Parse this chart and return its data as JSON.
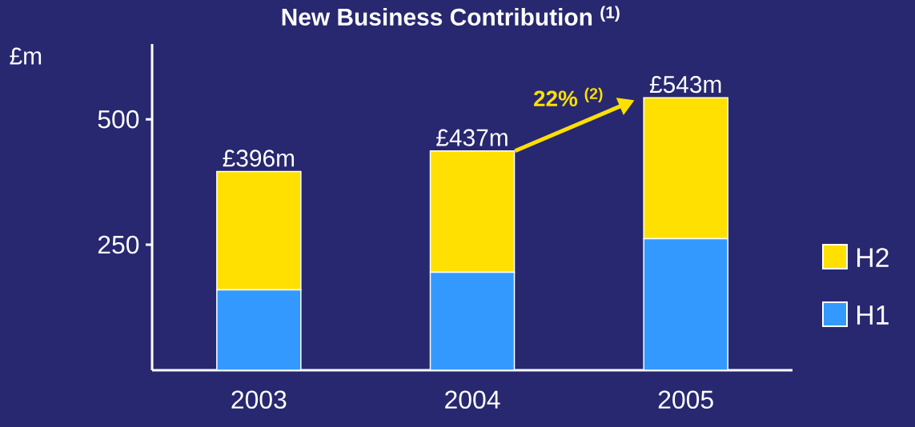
{
  "chart_data": {
    "type": "bar",
    "title": "New Business Contribution $^{(1)}$",
    "ylabel": "£m",
    "categories": [
      "2003",
      "2004",
      "2005"
    ],
    "stacked": true,
    "series": [
      {
        "name": "H1",
        "color": "#3399ff",
        "values": [
          160,
          195,
          262
        ]
      },
      {
        "name": "H2",
        "color": "#ffe000",
        "values": [
          236,
          242,
          281
        ]
      }
    ],
    "totals": [
      "£396m",
      "£437m",
      "£543m"
    ],
    "annotations": [
      "22% $^{(2)}$"
    ],
    "ylim": [
      0,
      650
    ],
    "yticks": [
      250,
      500
    ],
    "grid": false,
    "legend": "right"
  }
}
